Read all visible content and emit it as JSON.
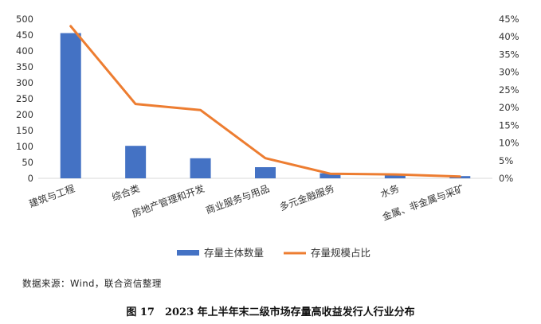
{
  "chart_data": {
    "type": "bar+line",
    "categories": [
      "建筑与工程",
      "综合类",
      "房地产管理和开发",
      "商业服务与用品",
      "多元金融服务",
      "水务",
      "金属、非金属与采矿"
    ],
    "series": [
      {
        "name": "存量主体数量",
        "kind": "bar",
        "axis": "left",
        "color": "#4472C4",
        "values": [
          456,
          102,
          63,
          35,
          16,
          10,
          7
        ]
      },
      {
        "name": "存量规模占比",
        "kind": "line",
        "axis": "right",
        "color": "#ED7D31",
        "values": [
          0.43,
          0.21,
          0.193,
          0.057,
          0.013,
          0.011,
          0.005
        ]
      }
    ],
    "y_left": {
      "min": 0,
      "max": 500,
      "step": 50,
      "tick_labels": [
        "0",
        "50",
        "100",
        "150",
        "200",
        "250",
        "300",
        "350",
        "400",
        "450",
        "500"
      ]
    },
    "y_right": {
      "min": 0,
      "max": 0.45,
      "step": 0.05,
      "tick_labels": [
        "0%",
        "5%",
        "10%",
        "15%",
        "20%",
        "25%",
        "30%",
        "35%",
        "40%",
        "45%"
      ]
    },
    "grid": false,
    "legend_position": "bottom"
  },
  "source_text": "数据来源：Wind，联合资信整理",
  "caption": "图 17　2023 年上半年末二级市场存量高收益发行人行业分布"
}
